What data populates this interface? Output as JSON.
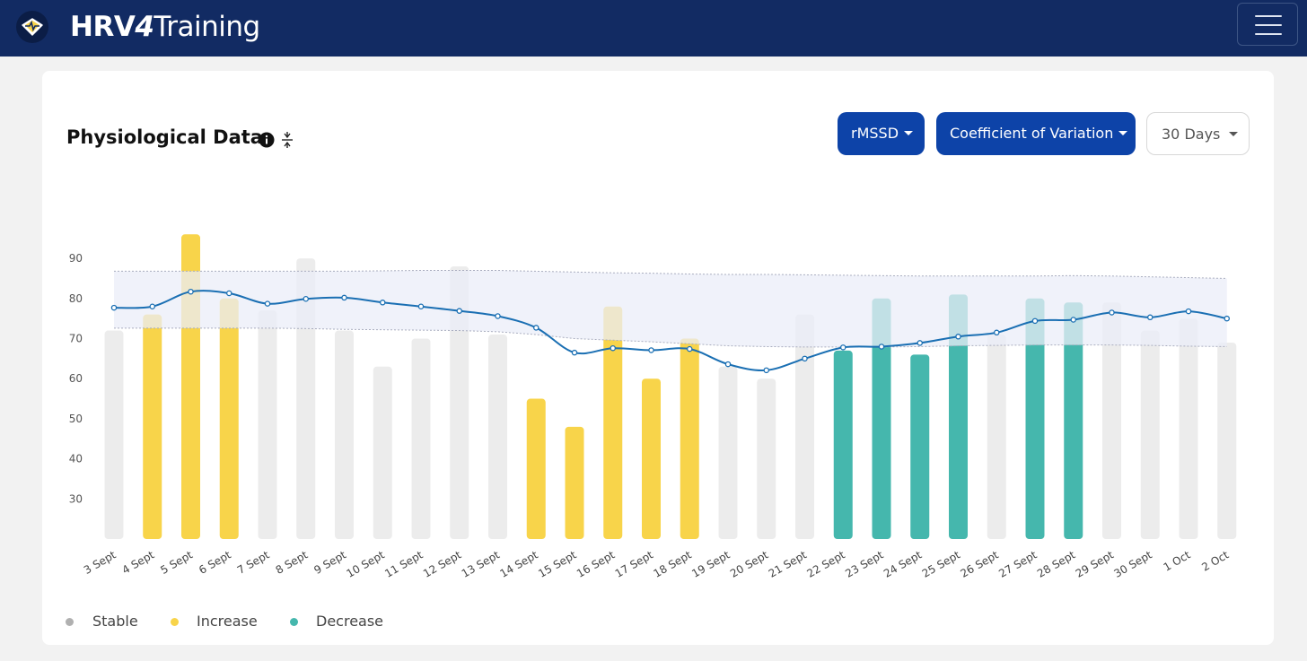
{
  "navbar": {
    "brand_bold": "HRV",
    "brand_four": "4",
    "brand_rest": "Training",
    "menu_icon": "hamburger-menu-icon",
    "background": "#122b63"
  },
  "card": {
    "title": "Physiological Data",
    "info_icon": "info-circle-icon",
    "compress_icon": "compress-vertical-icon"
  },
  "controls": {
    "metric": "rMSSD",
    "statistic": "Coefficient of Variation",
    "period": "30 Days"
  },
  "chart_data": {
    "type": "bar",
    "categories": [
      "3 Sept",
      "4 Sept",
      "5 Sept",
      "6 Sept",
      "7 Sept",
      "8 Sept",
      "9 Sept",
      "10 Sept",
      "11 Sept",
      "12 Sept",
      "13 Sept",
      "14 Sept",
      "15 Sept",
      "16 Sept",
      "17 Sept",
      "18 Sept",
      "19 Sept",
      "20 Sept",
      "21 Sept",
      "22 Sept",
      "23 Sept",
      "24 Sept",
      "25 Sept",
      "26 Sept",
      "27 Sept",
      "28 Sept",
      "29 Sept",
      "30 Sept",
      "1 Oct",
      "2 Oct"
    ],
    "yticks": [
      30,
      40,
      50,
      60,
      70,
      80,
      90
    ],
    "ylim": [
      20,
      97
    ],
    "series": [
      {
        "type": "bar",
        "values": [
          72,
          76,
          96,
          80,
          77,
          90,
          72,
          63,
          70,
          88,
          71,
          55,
          48,
          78,
          60,
          70,
          63,
          60,
          76,
          67,
          80,
          66,
          81,
          71,
          80,
          79,
          79,
          72,
          75,
          69
        ],
        "status": [
          "stable",
          "increase",
          "increase",
          "increase",
          "stable",
          "stable",
          "stable",
          "stable",
          "stable",
          "stable",
          "stable",
          "increase",
          "increase",
          "increase",
          "increase",
          "increase",
          "stable",
          "stable",
          "stable",
          "decrease",
          "decrease",
          "decrease",
          "decrease",
          "stable",
          "decrease",
          "decrease",
          "stable",
          "stable",
          "stable",
          "stable"
        ]
      },
      {
        "type": "line",
        "values": [
          77.7,
          78,
          81.7,
          81.3,
          78.7,
          79.9,
          80.2,
          79,
          78,
          76.9,
          75.6,
          72.7,
          66.5,
          67.6,
          67.1,
          67.4,
          63.6,
          62.1,
          65,
          67.8,
          68,
          68.9,
          70.5,
          71.5,
          74.4,
          74.7,
          76.5,
          75.3,
          76.8,
          75
        ]
      },
      {
        "type": "band",
        "upper": [
          86.8,
          86.8,
          86.8,
          86.8,
          86.8,
          86.8,
          86.8,
          86.9,
          87,
          87,
          87,
          86.8,
          86.6,
          86.4,
          86.3,
          86.1,
          86,
          86,
          85.9,
          85.8,
          85.7,
          85.6,
          85.6,
          85.6,
          85.6,
          85.7,
          85.6,
          85.4,
          85.2,
          85
        ],
        "lower": [
          72.6,
          72.6,
          72.6,
          72.6,
          72.6,
          72.5,
          72.3,
          72.2,
          72.1,
          72,
          71.7,
          71,
          70,
          69.6,
          69.2,
          68.7,
          68.2,
          68,
          67.9,
          67.9,
          67.9,
          68,
          68.2,
          68.3,
          68.4,
          68.4,
          68.4,
          68.3,
          68.1,
          68
        ]
      }
    ],
    "colors": {
      "stable": "#ececec",
      "increase": "#f8d44a",
      "decrease": "#45b7ad",
      "line": "#1a6fb3",
      "band": "#ebeef8"
    },
    "legend": [
      {
        "label": "Stable",
        "color": "#b0b0b0"
      },
      {
        "label": "Increase",
        "color": "#f8d44a"
      },
      {
        "label": "Decrease",
        "color": "#45b7ad"
      }
    ]
  }
}
